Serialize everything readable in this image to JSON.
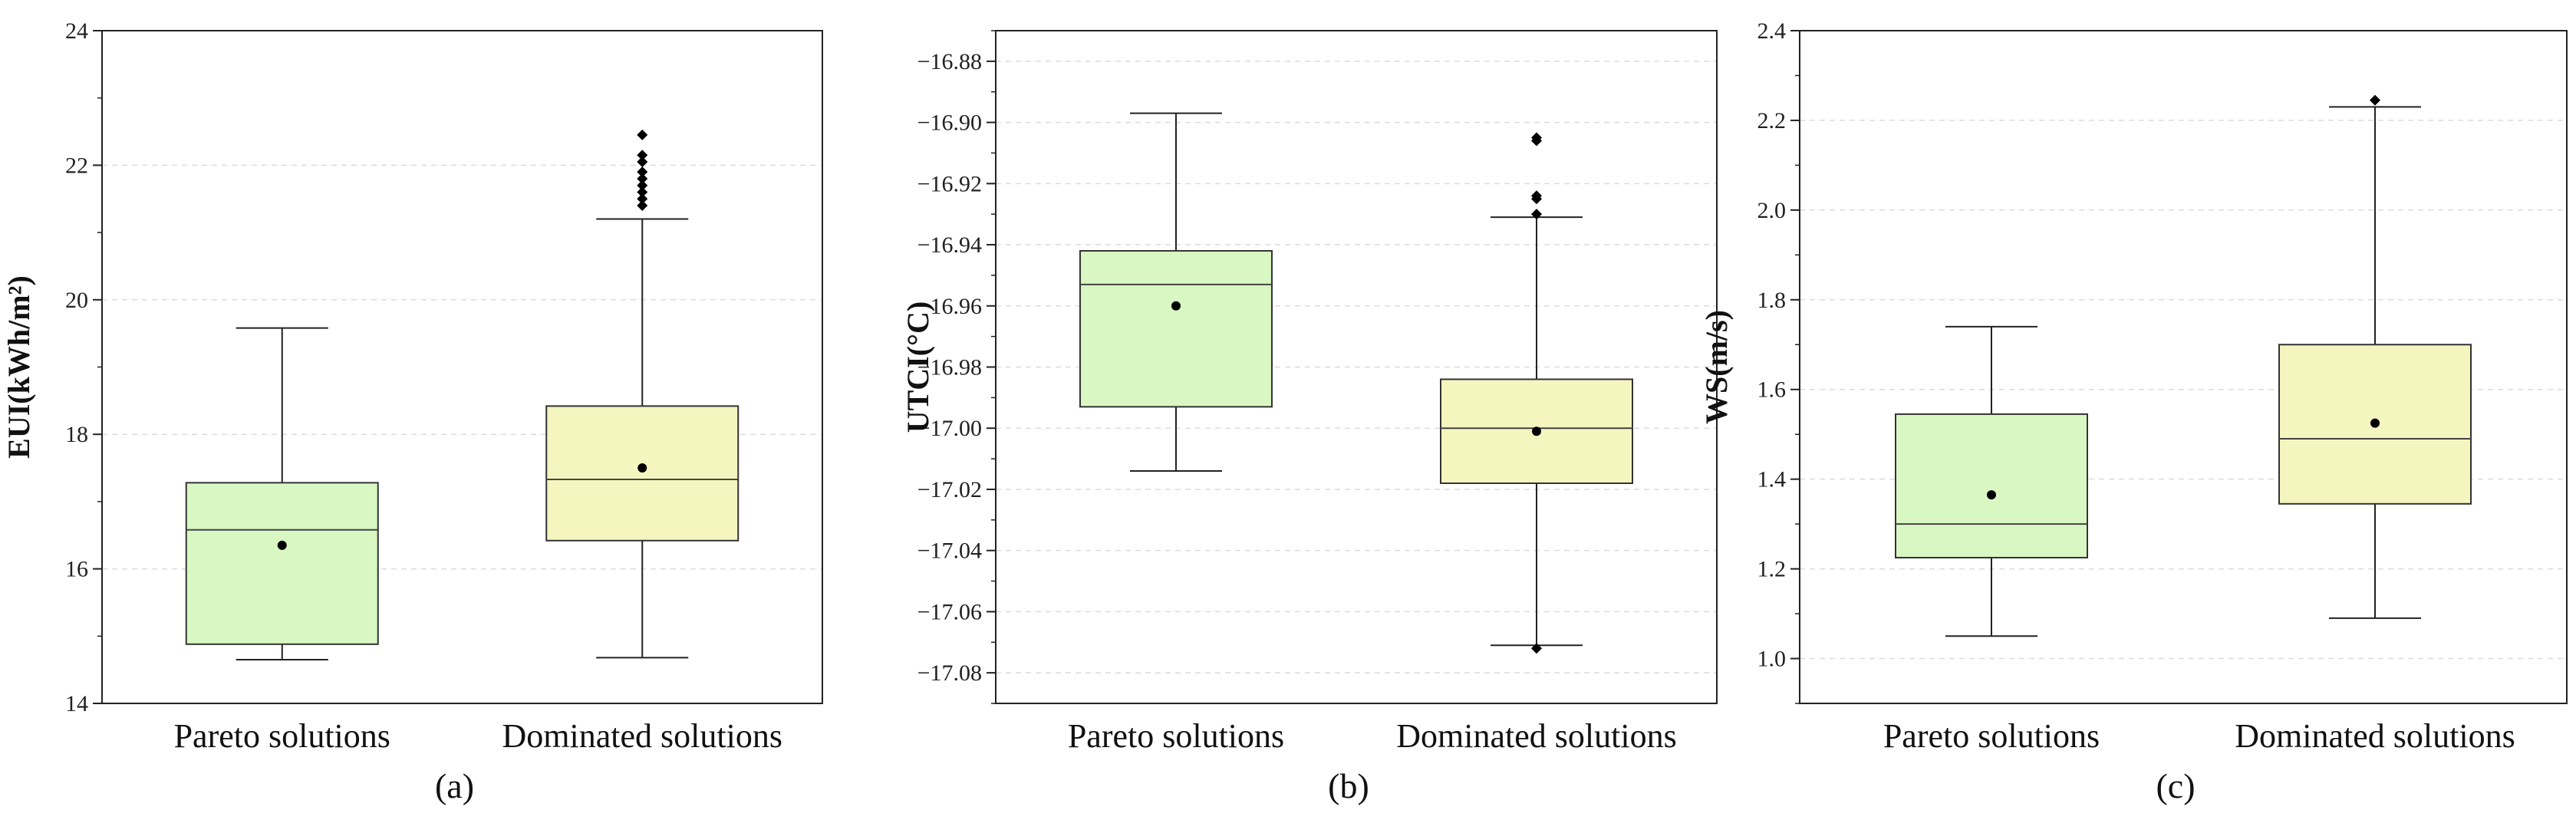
{
  "chart_data": [
    {
      "type": "box",
      "panel_label": "(a)",
      "ylabel": "EUI(kWh/m²)",
      "categories": [
        "Pareto solutions",
        "Dominated solutions"
      ],
      "ylim": [
        14,
        24
      ],
      "yticks": [
        14,
        16,
        18,
        20,
        22,
        24
      ],
      "tick_labels": [
        "14",
        "16",
        "18",
        "20",
        "22",
        "24"
      ],
      "minor_tick_step": 1,
      "grid": "horizontal dashed",
      "boxes": [
        {
          "name": "Pareto solutions",
          "color": "#d9f7c2",
          "whisker_low": 14.65,
          "q1": 14.88,
          "median": 16.58,
          "q3": 17.28,
          "whisker_high": 19.58,
          "mean": 16.35,
          "outliers": []
        },
        {
          "name": "Dominated solutions",
          "color": "#f5f5bf",
          "whisker_low": 14.68,
          "q1": 16.42,
          "median": 17.33,
          "q3": 18.42,
          "whisker_high": 21.2,
          "mean": 17.5,
          "outliers": [
            21.4,
            21.5,
            21.6,
            21.7,
            21.8,
            21.9,
            22.05,
            22.15,
            22.45
          ]
        }
      ]
    },
    {
      "type": "box",
      "panel_label": "(b)",
      "ylabel": "UTCI(°C)",
      "categories": [
        "Pareto solutions",
        "Dominated solutions"
      ],
      "ylim": [
        -17.09,
        -16.87
      ],
      "yticks": [
        -17.08,
        -17.06,
        -17.04,
        -17.02,
        -17.0,
        -16.98,
        -16.96,
        -16.94,
        -16.92,
        -16.9,
        -16.88
      ],
      "tick_labels": [
        "−17.08",
        "−17.06",
        "−17.04",
        "−17.02",
        "−17.00",
        "−16.98",
        "−16.96",
        "−16.94",
        "−16.92",
        "−16.90",
        "−16.88"
      ],
      "minor_tick_step": 0.01,
      "grid": "horizontal dashed",
      "boxes": [
        {
          "name": "Pareto solutions",
          "color": "#d9f7c2",
          "whisker_low": -17.014,
          "q1": -16.993,
          "median": -16.953,
          "q3": -16.942,
          "whisker_high": -16.897,
          "mean": -16.96,
          "outliers": []
        },
        {
          "name": "Dominated solutions",
          "color": "#f5f5bf",
          "whisker_low": -17.071,
          "q1": -17.018,
          "median": -17.0,
          "q3": -16.984,
          "whisker_high": -16.931,
          "mean": -17.001,
          "outliers": [
            -16.905,
            -16.906,
            -16.924,
            -16.925,
            -16.93,
            -17.072
          ]
        }
      ]
    },
    {
      "type": "box",
      "panel_label": "(c)",
      "ylabel": "WS(m/s)",
      "categories": [
        "Pareto solutions",
        "Dominated solutions"
      ],
      "ylim": [
        0.9,
        2.4
      ],
      "yticks": [
        1.0,
        1.2,
        1.4,
        1.6,
        1.8,
        2.0,
        2.2,
        2.4
      ],
      "tick_labels": [
        "1.0",
        "1.2",
        "1.4",
        "1.6",
        "1.8",
        "2.0",
        "2.2",
        "2.4"
      ],
      "minor_tick_step": 0.1,
      "grid": "horizontal dashed",
      "boxes": [
        {
          "name": "Pareto solutions",
          "color": "#d9f7c2",
          "whisker_low": 1.05,
          "q1": 1.225,
          "median": 1.3,
          "q3": 1.545,
          "whisker_high": 1.74,
          "mean": 1.365,
          "outliers": []
        },
        {
          "name": "Dominated solutions",
          "color": "#f5f5bf",
          "whisker_low": 1.09,
          "q1": 1.345,
          "median": 1.49,
          "q3": 1.7,
          "whisker_high": 2.23,
          "mean": 1.525,
          "outliers": [
            2.245
          ]
        }
      ]
    }
  ]
}
